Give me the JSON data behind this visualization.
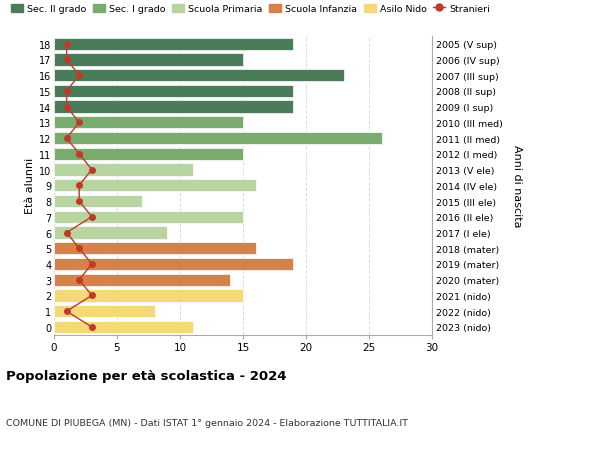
{
  "ages": [
    18,
    17,
    16,
    15,
    14,
    13,
    12,
    11,
    10,
    9,
    8,
    7,
    6,
    5,
    4,
    3,
    2,
    1,
    0
  ],
  "right_labels": [
    "2005 (V sup)",
    "2006 (IV sup)",
    "2007 (III sup)",
    "2008 (II sup)",
    "2009 (I sup)",
    "2010 (III med)",
    "2011 (II med)",
    "2012 (I med)",
    "2013 (V ele)",
    "2014 (IV ele)",
    "2015 (III ele)",
    "2016 (II ele)",
    "2017 (I ele)",
    "2018 (mater)",
    "2019 (mater)",
    "2020 (mater)",
    "2021 (nido)",
    "2022 (nido)",
    "2023 (nido)"
  ],
  "bar_values": [
    19,
    15,
    23,
    19,
    19,
    15,
    26,
    15,
    11,
    16,
    7,
    15,
    9,
    16,
    19,
    14,
    15,
    8,
    11
  ],
  "stranieri_values": [
    1,
    1,
    2,
    1,
    1,
    2,
    1,
    2,
    3,
    2,
    2,
    3,
    1,
    2,
    3,
    2,
    3,
    1,
    3
  ],
  "bar_colors": [
    "#4a7c59",
    "#4a7c59",
    "#4a7c59",
    "#4a7c59",
    "#4a7c59",
    "#7aab6e",
    "#7aab6e",
    "#7aab6e",
    "#b8d4a0",
    "#b8d4a0",
    "#b8d4a0",
    "#b8d4a0",
    "#b8d4a0",
    "#d4824a",
    "#d4824a",
    "#d4824a",
    "#f5d87a",
    "#f5d87a",
    "#f5d87a"
  ],
  "legend_labels": [
    "Sec. II grado",
    "Sec. I grado",
    "Scuola Primaria",
    "Scuola Infanzia",
    "Asilo Nido",
    "Stranieri"
  ],
  "legend_colors": [
    "#4a7c59",
    "#7aab6e",
    "#b8d4a0",
    "#d4824a",
    "#f5d87a",
    "#c0392b"
  ],
  "stranieri_color": "#c0392b",
  "ylabel_left": "Età alunni",
  "ylabel_right": "Anni di nascita",
  "title": "Popolazione per età scolastica - 2024",
  "subtitle": "COMUNE DI PIUBEGA (MN) - Dati ISTAT 1° gennaio 2024 - Elaborazione TUTTITALIA.IT",
  "xlim": [
    0,
    30
  ],
  "xticks": [
    0,
    5,
    10,
    15,
    20,
    25,
    30
  ],
  "background_color": "#ffffff",
  "grid_color": "#dddddd"
}
